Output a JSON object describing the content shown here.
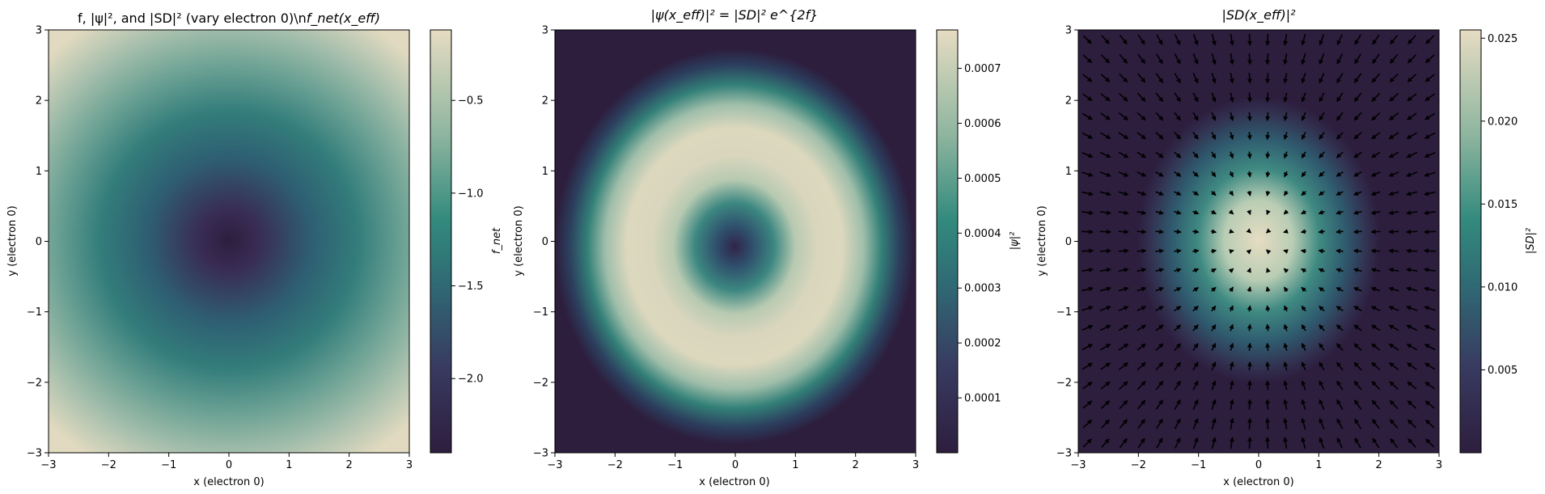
{
  "chart_data": [
    {
      "type": "heatmap",
      "title": "f, |ψ|², and |SD|² (vary electron 0)\\n",
      "title_math": "f_net(x_eff)",
      "xlabel": "x (electron 0)",
      "ylabel": "y (electron 0)",
      "xlim": [
        -3,
        3
      ],
      "ylim": [
        -3,
        3
      ],
      "x_ticks": [
        "−3",
        "−2",
        "−1",
        "0",
        "1",
        "2",
        "3"
      ],
      "y_ticks": [
        "3",
        "2",
        "1",
        "0",
        "−1",
        "−2",
        "−3"
      ],
      "colorbar": {
        "label": "f_net",
        "range": [
          -2.4,
          -0.12
        ],
        "ticks": [
          -0.5,
          -1.0,
          -1.5,
          -2.0
        ],
        "tick_labels": [
          "−0.5",
          "−1.0",
          "−1.5",
          "−2.0"
        ]
      },
      "field": "radial well, minimum ≈ −2.4 at origin, ≈ −0.12 at corners"
    },
    {
      "type": "heatmap",
      "title": "|ψ(x_eff)|² = |SD|² e^{2f}",
      "xlabel": "x (electron 0)",
      "ylabel": "y (electron 0)",
      "xlim": [
        -3,
        3
      ],
      "ylim": [
        -3,
        3
      ],
      "x_ticks": [
        "−3",
        "−2",
        "−1",
        "0",
        "1",
        "2",
        "3"
      ],
      "y_ticks": [
        "3",
        "2",
        "1",
        "0",
        "−1",
        "−2",
        "−3"
      ],
      "colorbar": {
        "label": "|ψ|²",
        "range": [
          0.0,
          0.00077
        ],
        "ticks": [
          0.0007,
          0.0006,
          0.0005,
          0.0004,
          0.0003,
          0.0002,
          0.0001
        ],
        "tick_labels": [
          "0.0007",
          "0.0006",
          "0.0005",
          "0.0004",
          "0.0003",
          "0.0002",
          "0.0001"
        ]
      },
      "field": "ring of high density at radius ≈ 1.5, low at centre"
    },
    {
      "type": "heatmap",
      "title": "|SD(x_eff)|²",
      "xlabel": "x (electron 0)",
      "ylabel": "y (electron 0)",
      "xlim": [
        -3,
        3
      ],
      "ylim": [
        -3,
        3
      ],
      "x_ticks": [
        "−3",
        "−2",
        "−1",
        "0",
        "1",
        "2",
        "3"
      ],
      "y_ticks": [
        "3",
        "2",
        "1",
        "0",
        "−1",
        "−2",
        "−3"
      ],
      "colorbar": {
        "label": "|SD|²",
        "range": [
          0.0,
          0.0255
        ],
        "ticks": [
          0.025,
          0.02,
          0.015,
          0.01,
          0.005
        ],
        "tick_labels": [
          "0.025",
          "0.020",
          "0.015",
          "0.010",
          "0.005"
        ]
      },
      "field": "gaussian peak ≈ 0.0255 at origin, width ≈ 0.85 in x, 1.0 in y",
      "overlay": "quiver arrows pointing radially inward toward origin"
    }
  ],
  "colors": {
    "cmap_low": "#2d1e3e",
    "cmap_mid": "#2e7c7a",
    "cmap_high": "#e6dcc2",
    "arrow": "#000000"
  }
}
